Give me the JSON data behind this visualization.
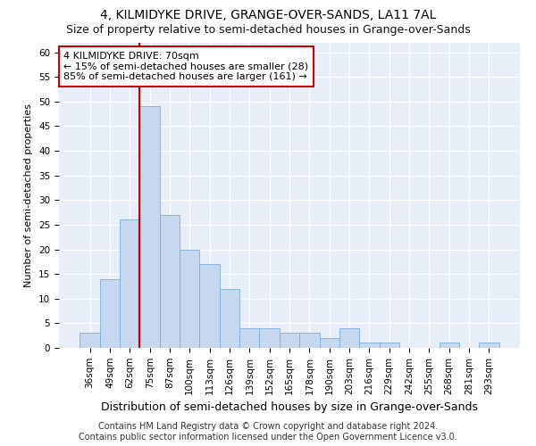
{
  "title1": "4, KILMIDYKE DRIVE, GRANGE-OVER-SANDS, LA11 7AL",
  "title2": "Size of property relative to semi-detached houses in Grange-over-Sands",
  "xlabel": "Distribution of semi-detached houses by size in Grange-over-Sands",
  "ylabel": "Number of semi-detached properties",
  "categories": [
    "36sqm",
    "49sqm",
    "62sqm",
    "75sqm",
    "87sqm",
    "100sqm",
    "113sqm",
    "126sqm",
    "139sqm",
    "152sqm",
    "165sqm",
    "178sqm",
    "190sqm",
    "203sqm",
    "216sqm",
    "229sqm",
    "242sqm",
    "255sqm",
    "268sqm",
    "281sqm",
    "293sqm"
  ],
  "values": [
    3,
    14,
    26,
    49,
    27,
    20,
    17,
    12,
    4,
    4,
    3,
    3,
    2,
    4,
    1,
    1,
    0,
    0,
    1,
    0,
    1
  ],
  "bar_color": "#c5d8f0",
  "bar_edge_color": "#7aaed4",
  "highlight_line_color": "#cc0000",
  "annotation_line1": "4 KILMIDYKE DRIVE: 70sqm",
  "annotation_line2": "← 15% of semi-detached houses are smaller (28)",
  "annotation_line3": "85% of semi-detached houses are larger (161) →",
  "annotation_box_color": "#ffffff",
  "annotation_box_edge": "#cc0000",
  "ylim": [
    0,
    62
  ],
  "yticks": [
    0,
    5,
    10,
    15,
    20,
    25,
    30,
    35,
    40,
    45,
    50,
    55,
    60
  ],
  "footer_line1": "Contains HM Land Registry data © Crown copyright and database right 2024.",
  "footer_line2": "Contains public sector information licensed under the Open Government Licence v3.0.",
  "fig_bg_color": "#ffffff",
  "plot_bg_color": "#e8eef8",
  "grid_color": "#ffffff",
  "title1_fontsize": 10,
  "title2_fontsize": 9,
  "xlabel_fontsize": 9,
  "ylabel_fontsize": 8,
  "tick_fontsize": 7.5,
  "annotation_fontsize": 8,
  "footer_fontsize": 7
}
